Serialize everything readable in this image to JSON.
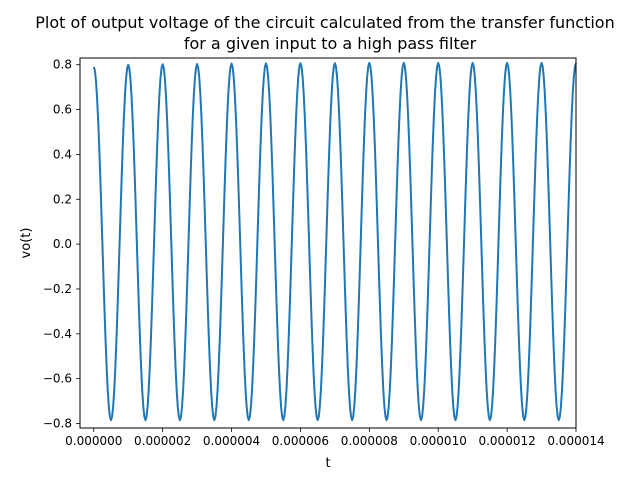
{
  "chart_data": {
    "type": "line",
    "title": "Plot of output voltage of the circuit calculated from the transfer function for a given input to a high pass filter",
    "title_lines": [
      "Plot of output voltage of the circuit calculated from the transfer function",
      "for a given input to a high pass filter"
    ],
    "xlabel": "t",
    "ylabel": "vo(t)",
    "xlim": [
      -4e-07,
      1.4e-05
    ],
    "ylim": [
      -0.82,
      0.83
    ],
    "xticks": [
      0,
      2e-06,
      4e-06,
      6e-06,
      8e-06,
      1e-05,
      1.2e-05,
      1.4e-05
    ],
    "xtick_labels": [
      "0.000000",
      "0.000002",
      "0.000004",
      "0.000006",
      "0.000008",
      "0.000010",
      "0.000012",
      "0.000014"
    ],
    "yticks": [
      -0.8,
      -0.6,
      -0.4,
      -0.2,
      0.0,
      0.2,
      0.4,
      0.6,
      0.8
    ],
    "ytick_labels": [
      "−0.8",
      "−0.6",
      "−0.4",
      "−0.2",
      "0.0",
      "0.2",
      "0.4",
      "0.6",
      "0.8"
    ],
    "grid": false,
    "legend": "none",
    "series": [
      {
        "color": "#1f77b4",
        "x": [
          0.0,
          5e-07,
          1e-06,
          1.5e-06,
          2e-06,
          2.5e-06,
          3e-06,
          3.5e-06,
          4e-06,
          4.5e-06,
          5e-06,
          5.5e-06,
          6e-06,
          6.5e-06,
          7e-06,
          7.5e-06,
          8e-06,
          8.5e-06,
          9e-06,
          9.5e-06,
          1e-05,
          1.05e-05,
          1.1e-05,
          1.15e-05,
          1.2e-05,
          1.25e-05,
          1.3e-05,
          1.35e-05,
          1.4e-05
        ],
        "y": [
          0.79,
          -0.785,
          0.8,
          -0.785,
          0.802,
          -0.785,
          0.803,
          -0.785,
          0.805,
          -0.785,
          0.806,
          -0.785,
          0.807,
          -0.785,
          0.807,
          -0.785,
          0.808,
          -0.785,
          0.808,
          -0.785,
          0.808,
          -0.785,
          0.808,
          -0.785,
          0.808,
          -0.785,
          0.808,
          -0.785,
          0.808
        ]
      }
    ]
  }
}
